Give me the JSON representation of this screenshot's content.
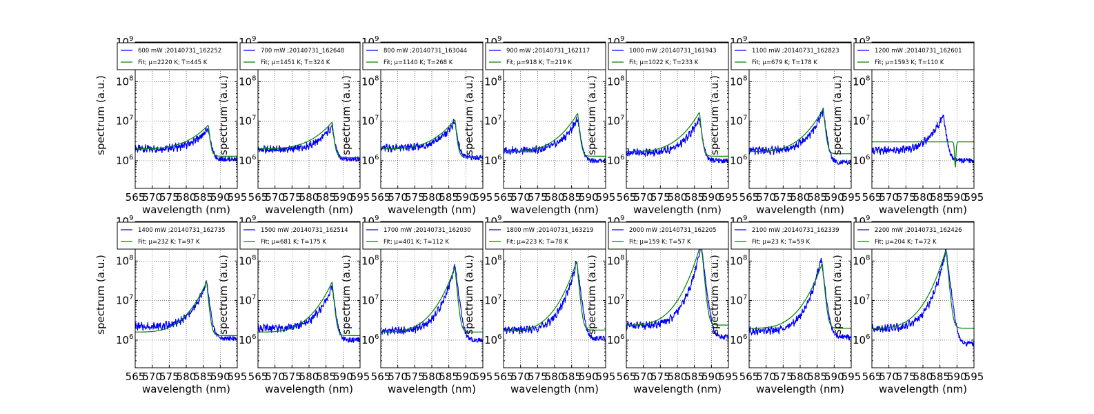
{
  "chart_data": [
    {
      "type": "line",
      "xlabel": "wavelength (nm)",
      "ylabel": "spectrum (a.u.)",
      "xlim": [
        565,
        595
      ],
      "ylim_log10": [
        5.3,
        9
      ],
      "series": [
        {
          "name": "600 mW ;20140731_162252",
          "color": "#0000ff",
          "peak_x": 586.5,
          "peak_y": 6500000,
          "base_left": 2000000,
          "base_right": 1100000
        },
        {
          "name": "Fit; μ=2220 K; T=445 K",
          "color": "#008000",
          "mu": 2220,
          "T": 445,
          "peak_x": 586.5,
          "peak_y": 8000000,
          "base_left": 2000000,
          "base_right": 1300000
        }
      ]
    },
    {
      "type": "line",
      "xlabel": "wavelength (nm)",
      "ylabel": "spectrum (a.u.)",
      "xlim": [
        565,
        595
      ],
      "ylim_log10": [
        5.3,
        9
      ],
      "series": [
        {
          "name": "700 mW ;20140731_162648",
          "color": "#0000ff",
          "peak_x": 586.8,
          "peak_y": 7500000,
          "base_left": 1900000,
          "base_right": 1100000
        },
        {
          "name": "Fit; μ=1451 K; T=324 K",
          "color": "#008000",
          "mu": 1451,
          "T": 324,
          "peak_x": 586.8,
          "peak_y": 9500000,
          "base_left": 2000000,
          "base_right": 1200000
        }
      ]
    },
    {
      "type": "line",
      "xlabel": "wavelength (nm)",
      "ylabel": "spectrum (a.u.)",
      "xlim": [
        565,
        595
      ],
      "ylim_log10": [
        5.3,
        9
      ],
      "series": [
        {
          "name": "800 mW ;20140731_163044",
          "color": "#0000ff",
          "peak_x": 586.8,
          "peak_y": 10000000,
          "base_left": 2100000,
          "base_right": 1200000
        },
        {
          "name": "Fit; μ=1140 K; T=268 K",
          "color": "#008000",
          "mu": 1140,
          "T": 268,
          "peak_x": 586.8,
          "peak_y": 11000000,
          "base_left": 2000000,
          "base_right": 1200000
        }
      ]
    },
    {
      "type": "line",
      "xlabel": "wavelength (nm)",
      "ylabel": "spectrum (a.u.)",
      "xlim": [
        565,
        595
      ],
      "ylim_log10": [
        5.3,
        9
      ],
      "series": [
        {
          "name": "900 mW ;20140731_162117",
          "color": "#0000ff",
          "peak_x": 586.8,
          "peak_y": 12000000,
          "base_left": 1800000,
          "base_right": 1000000
        },
        {
          "name": "Fit; μ=918 K; T=219 K",
          "color": "#008000",
          "mu": 918,
          "T": 219,
          "peak_x": 586.8,
          "peak_y": 16000000,
          "base_left": 1700000,
          "base_right": 1300000
        }
      ]
    },
    {
      "type": "line",
      "xlabel": "wavelength (nm)",
      "ylabel": "spectrum (a.u.)",
      "xlim": [
        565,
        595
      ],
      "ylim_log10": [
        5.3,
        9
      ],
      "series": [
        {
          "name": "1000 mW ;20140731_161943",
          "color": "#0000ff",
          "peak_x": 586.5,
          "peak_y": 12000000,
          "base_left": 1600000,
          "base_right": 1000000
        },
        {
          "name": "Fit; μ=1022 K; T=233 K",
          "color": "#008000",
          "mu": 1022,
          "T": 233,
          "peak_x": 586.5,
          "peak_y": 17000000,
          "base_left": 1700000,
          "base_right": 1300000
        }
      ]
    },
    {
      "type": "line",
      "xlabel": "wavelength (nm)",
      "ylabel": "spectrum (a.u.)",
      "xlim": [
        565,
        595
      ],
      "ylim_log10": [
        5.3,
        9
      ],
      "series": [
        {
          "name": "1100 mW ;20140731_162823",
          "color": "#0000ff",
          "peak_x": 586.8,
          "peak_y": 19000000,
          "base_left": 1800000,
          "base_right": 900000
        },
        {
          "name": "Fit; μ=679 K; T=178 K",
          "color": "#008000",
          "mu": 679,
          "T": 178,
          "peak_x": 586.8,
          "peak_y": 21000000,
          "base_left": 1700000,
          "base_right": 1500000
        }
      ]
    },
    {
      "type": "line",
      "xlabel": "wavelength (nm)",
      "ylabel": "spectrum (a.u.)",
      "xlim": [
        565,
        595
      ],
      "ylim_log10": [
        5.3,
        9
      ],
      "series": [
        {
          "name": "1200 mW ;20140731_162601",
          "color": "#0000ff",
          "peak_x": 586.0,
          "peak_y": 15000000,
          "base_left": 1800000,
          "base_right": 1000000
        },
        {
          "name": "Fit; μ=1593 K; T=110 K",
          "color": "#008000",
          "mu": 1593,
          "T": 110,
          "flat": 3000000,
          "dip_x": 589.5,
          "dip_y": 650000
        }
      ]
    },
    {
      "type": "line",
      "xlabel": "wavelength (nm)",
      "ylabel": "spectrum (a.u.)",
      "xlim": [
        565,
        595
      ],
      "ylim_log10": [
        5.3,
        9
      ],
      "series": [
        {
          "name": "1400 mW ;20140731_162735",
          "color": "#0000ff",
          "peak_x": 586.0,
          "peak_y": 30000000,
          "base_left": 2200000,
          "base_right": 1100000
        },
        {
          "name": "Fit; μ=232 K; T=97 K",
          "color": "#008000",
          "mu": 232,
          "T": 97,
          "peak_x": 586.0,
          "peak_y": 30000000,
          "base_left": 1600000,
          "base_right": 1300000
        }
      ]
    },
    {
      "type": "line",
      "xlabel": "wavelength (nm)",
      "ylabel": "spectrum (a.u.)",
      "xlim": [
        565,
        595
      ],
      "ylim_log10": [
        5.3,
        9
      ],
      "series": [
        {
          "name": "1500 mW ;20140731_162514",
          "color": "#0000ff",
          "peak_x": 586.8,
          "peak_y": 22000000,
          "base_left": 2000000,
          "base_right": 1000000
        },
        {
          "name": "Fit; μ=681 K; T=175 K",
          "color": "#008000",
          "mu": 681,
          "T": 175,
          "peak_x": 586.8,
          "peak_y": 30000000,
          "base_left": 1600000,
          "base_right": 1300000
        }
      ]
    },
    {
      "type": "line",
      "xlabel": "wavelength (nm)",
      "ylabel": "spectrum (a.u.)",
      "xlim": [
        565,
        595
      ],
      "ylim_log10": [
        5.3,
        9
      ],
      "series": [
        {
          "name": "1700 mW ;20140731_162030",
          "color": "#0000ff",
          "peak_x": 586.8,
          "peak_y": 80000000,
          "base_left": 1700000,
          "base_right": 1000000
        },
        {
          "name": "Fit; μ=401 K; T=112 K",
          "color": "#008000",
          "mu": 401,
          "T": 112,
          "peak_x": 586.8,
          "peak_y": 70000000,
          "base_left": 1600000,
          "base_right": 1600000
        }
      ]
    },
    {
      "type": "line",
      "xlabel": "wavelength (nm)",
      "ylabel": "spectrum (a.u.)",
      "xlim": [
        565,
        595
      ],
      "ylim_log10": [
        5.3,
        9
      ],
      "series": [
        {
          "name": "1800 mW ;20140731_163219",
          "color": "#0000ff",
          "peak_x": 586.5,
          "peak_y": 100000000,
          "base_left": 1800000,
          "base_right": 1100000
        },
        {
          "name": "Fit; μ=223 K; T=78 K",
          "color": "#008000",
          "mu": 223,
          "T": 78,
          "peak_x": 586.5,
          "peak_y": 100000000,
          "base_left": 1700000,
          "base_right": 1800000
        }
      ]
    },
    {
      "type": "line",
      "xlabel": "wavelength (nm)",
      "ylabel": "spectrum (a.u.)",
      "xlim": [
        565,
        595
      ],
      "ylim_log10": [
        5.3,
        9
      ],
      "series": [
        {
          "name": "2000 mW ;20140731_162205",
          "color": "#0000ff",
          "peak_x": 587.0,
          "peak_y": 250000000,
          "base_left": 2300000,
          "base_right": 1200000
        },
        {
          "name": "Fit; μ=159 K; T=57 K",
          "color": "#008000",
          "mu": 159,
          "T": 57,
          "peak_x": 587.0,
          "peak_y": 300000000,
          "base_left": 2400000,
          "base_right": 2400000
        }
      ]
    },
    {
      "type": "line",
      "xlabel": "wavelength (nm)",
      "ylabel": "spectrum (a.u.)",
      "xlim": [
        565,
        595
      ],
      "ylim_log10": [
        5.3,
        9
      ],
      "series": [
        {
          "name": "2100 mW ;20140731_162339",
          "color": "#0000ff",
          "peak_x": 586.2,
          "peak_y": 120000000,
          "base_left": 1700000,
          "base_right": 1200000
        },
        {
          "name": "Fit; μ=23 K; T=59 K",
          "color": "#008000",
          "mu": 23,
          "T": 59,
          "peak_x": 586.5,
          "peak_y": 90000000,
          "base_left": 2000000,
          "base_right": 2000000
        }
      ]
    },
    {
      "type": "line",
      "xlabel": "wavelength (nm)",
      "ylabel": "spectrum (a.u.)",
      "xlim": [
        565,
        595
      ],
      "ylim_log10": [
        5.3,
        9
      ],
      "series": [
        {
          "name": "2200 mW ;20140731_162426",
          "color": "#0000ff",
          "peak_x": 586.8,
          "peak_y": 200000000,
          "base_left": 2000000,
          "base_right": 800000
        },
        {
          "name": "Fit; μ=204 K; T=72 K",
          "color": "#008000",
          "mu": 204,
          "T": 72,
          "peak_x": 586.8,
          "peak_y": 200000000,
          "base_left": 2000000,
          "base_right": 2000000
        }
      ]
    }
  ],
  "x_ticks": [
    "565",
    "570",
    "575",
    "580",
    "585",
    "590",
    "595"
  ],
  "y_ticks": [
    {
      "base": "10",
      "exp": "6",
      "value": 1000000
    },
    {
      "base": "10",
      "exp": "7",
      "value": 10000000
    },
    {
      "base": "10",
      "exp": "8",
      "value": 100000000
    },
    {
      "base": "10",
      "exp": "9",
      "value": 1000000000
    }
  ],
  "grid": true,
  "legend_position": "top"
}
